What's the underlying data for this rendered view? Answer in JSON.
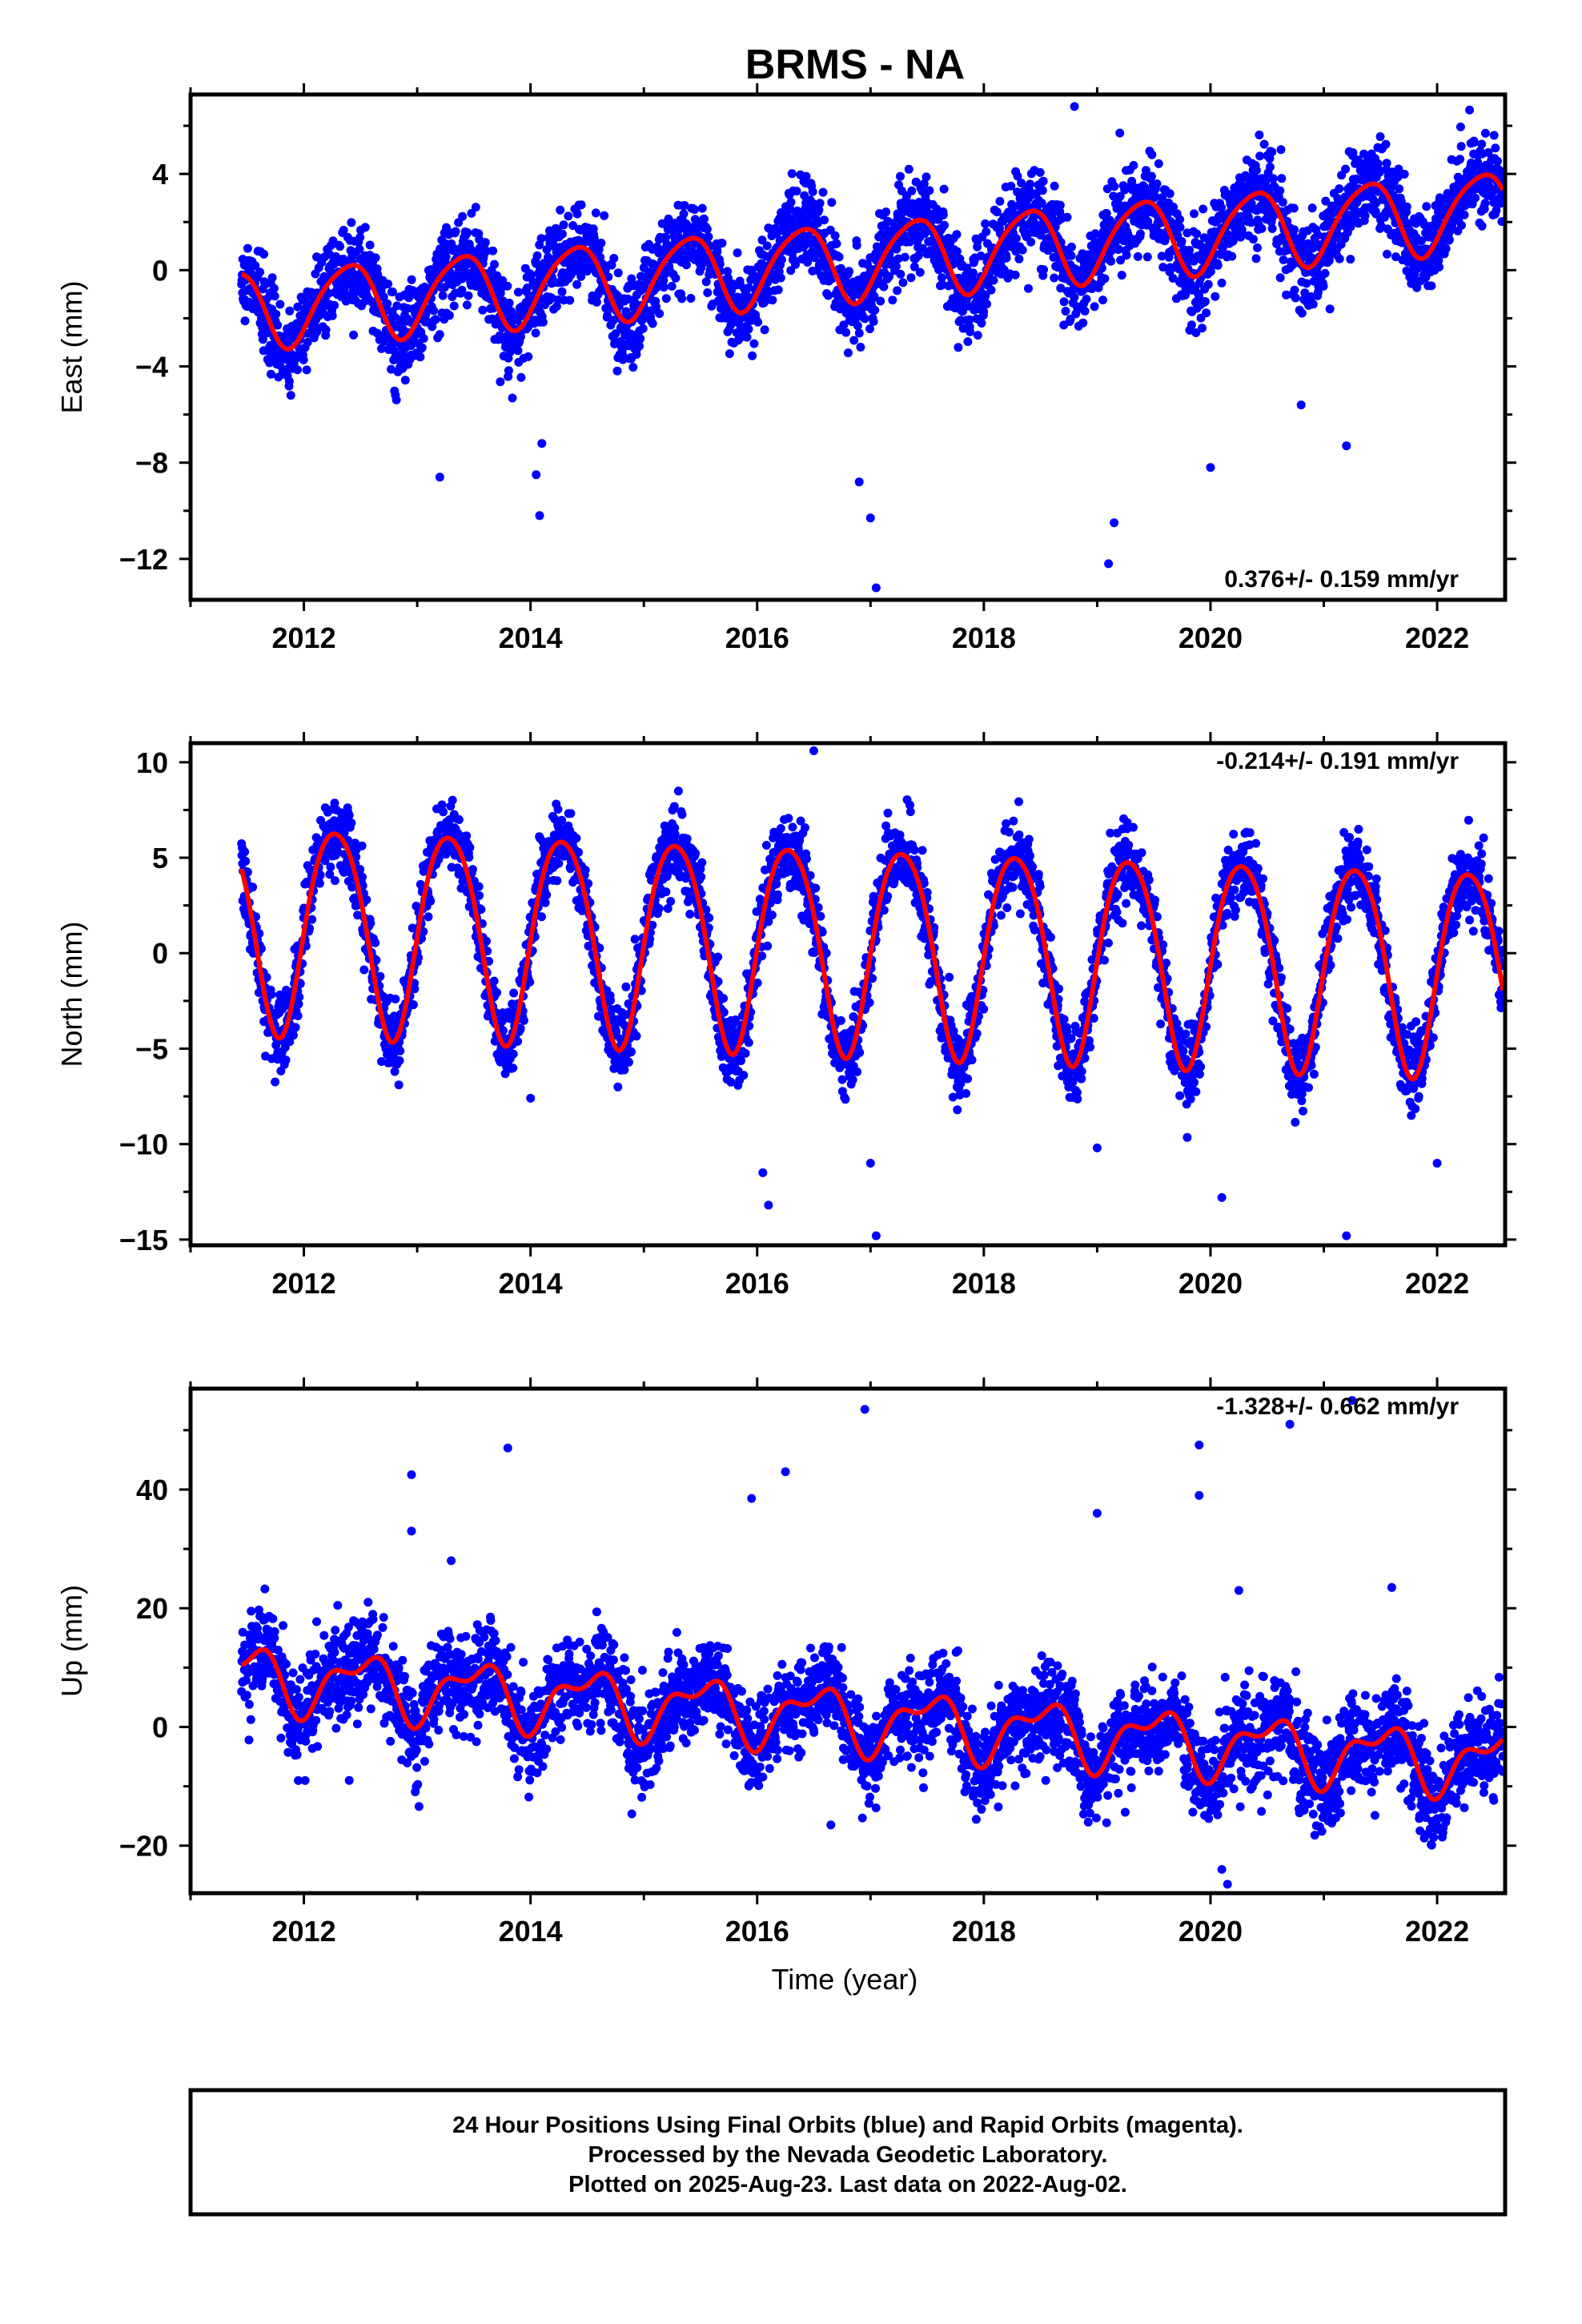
{
  "title": "BRMS - NA",
  "colors": {
    "final_orbits": "#0000ff",
    "model_fit": "#ff0000",
    "frame": "#000000"
  },
  "footer": {
    "line1": "24 Hour Positions Using Final Orbits (blue) and Rapid Orbits (magenta).",
    "line2": "Processed by the Nevada Geodetic Laboratory.",
    "line3": "Plotted on 2025-Aug-23. Last data on 2022-Aug-02."
  },
  "chart_data": [
    {
      "type": "scatter",
      "ylabel": "East (mm)",
      "xlabel": "",
      "xlim": [
        2011.0,
        2022.6
      ],
      "ylim": [
        -13.7,
        7.3
      ],
      "x_ticks": [
        2012,
        2014,
        2016,
        2018,
        2020,
        2022
      ],
      "y_ticks": [
        -12,
        -8,
        -4,
        0,
        4
      ],
      "rate_label": "0.376+/- 0.159 mm/yr",
      "rate_position": "bottom-right",
      "data_start": 2011.45,
      "data_end": 2022.58,
      "model": {
        "offset": -1.6,
        "trend": 0.376,
        "annual_amplitude": 1.6,
        "annual_phase": 2.4,
        "semiannual_amplitude": 0.25,
        "semiannual_phase": 1.0
      },
      "scatter_std": 0.9,
      "outliers": [
        [
          2014.05,
          -8.5
        ],
        [
          2014.08,
          -10.2
        ],
        [
          2014.1,
          -7.2
        ],
        [
          2017.0,
          -10.3
        ],
        [
          2017.05,
          -13.2
        ],
        [
          2016.9,
          -8.8
        ],
        [
          2019.1,
          -12.2
        ],
        [
          2019.15,
          -10.5
        ],
        [
          2018.8,
          6.8
        ],
        [
          2019.2,
          5.7
        ],
        [
          2020.0,
          -8.2
        ],
        [
          2021.2,
          -7.3
        ],
        [
          2020.8,
          -5.6
        ],
        [
          2013.2,
          -8.6
        ]
      ],
      "series": [
        {
          "name": "Final Orbits",
          "kind": "points"
        },
        {
          "name": "Model",
          "kind": "line"
        }
      ]
    },
    {
      "type": "scatter",
      "ylabel": "North (mm)",
      "xlabel": "",
      "xlim": [
        2011.0,
        2022.6
      ],
      "ylim": [
        -15.3,
        11.0
      ],
      "x_ticks": [
        2012,
        2014,
        2016,
        2018,
        2020,
        2022
      ],
      "y_ticks": [
        -15,
        -10,
        -5,
        0,
        5,
        10
      ],
      "rate_label": "-0.214+/- 0.191 mm/yr",
      "rate_position": "top-right",
      "data_start": 2011.45,
      "data_end": 2022.58,
      "model": {
        "offset": 1.6,
        "trend": -0.214,
        "annual_amplitude": 5.4,
        "annual_phase": 1.75,
        "semiannual_amplitude": 0.6,
        "semiannual_phase": 0.5
      },
      "scatter_std": 1.0,
      "outliers": [
        [
          2016.1,
          -13.2
        ],
        [
          2016.05,
          -11.5
        ],
        [
          2017.05,
          -14.8
        ],
        [
          2017.0,
          -11.0
        ],
        [
          2019.0,
          -10.2
        ],
        [
          2020.1,
          -12.8
        ],
        [
          2021.2,
          -14.8
        ],
        [
          2022.0,
          -11.0
        ],
        [
          2016.5,
          10.6
        ],
        [
          2014.0,
          -7.6
        ]
      ],
      "series": [
        {
          "name": "Final Orbits",
          "kind": "points"
        },
        {
          "name": "Model",
          "kind": "line"
        }
      ]
    },
    {
      "type": "scatter",
      "ylabel": "Up (mm)",
      "xlabel": "Time (year)",
      "xlim": [
        2011.0,
        2022.6
      ],
      "ylim": [
        -28.0,
        57.0
      ],
      "x_ticks": [
        2012,
        2014,
        2016,
        2018,
        2020,
        2022
      ],
      "y_ticks": [
        -20,
        0,
        20,
        40
      ],
      "rate_label": "-1.328+/- 0.662 mm/yr",
      "rate_position": "top-right",
      "data_start": 2011.45,
      "data_end": 2022.58,
      "model": {
        "offset": 8.5,
        "trend": -1.328,
        "annual_amplitude": 4.6,
        "annual_phase": 3.2,
        "semiannual_amplitude": 2.4,
        "semiannual_phase": 2.6
      },
      "scatter_std": 4.0,
      "outliers": [
        [
          2012.95,
          42.5
        ],
        [
          2012.95,
          33.0
        ],
        [
          2013.8,
          47.0
        ],
        [
          2016.25,
          43.0
        ],
        [
          2015.95,
          38.5
        ],
        [
          2016.95,
          53.5
        ],
        [
          2019.0,
          36.0
        ],
        [
          2019.9,
          47.5
        ],
        [
          2019.9,
          39.0
        ],
        [
          2020.7,
          51.0
        ],
        [
          2021.25,
          55.0
        ],
        [
          2021.6,
          23.5
        ],
        [
          2020.25,
          23.0
        ],
        [
          2020.15,
          -26.5
        ],
        [
          2020.1,
          -24.0
        ],
        [
          2013.3,
          28.0
        ],
        [
          2016.65,
          -16.5
        ],
        [
          2012.4,
          -9.0
        ]
      ],
      "series": [
        {
          "name": "Final Orbits",
          "kind": "points"
        },
        {
          "name": "Model",
          "kind": "line"
        }
      ]
    }
  ]
}
